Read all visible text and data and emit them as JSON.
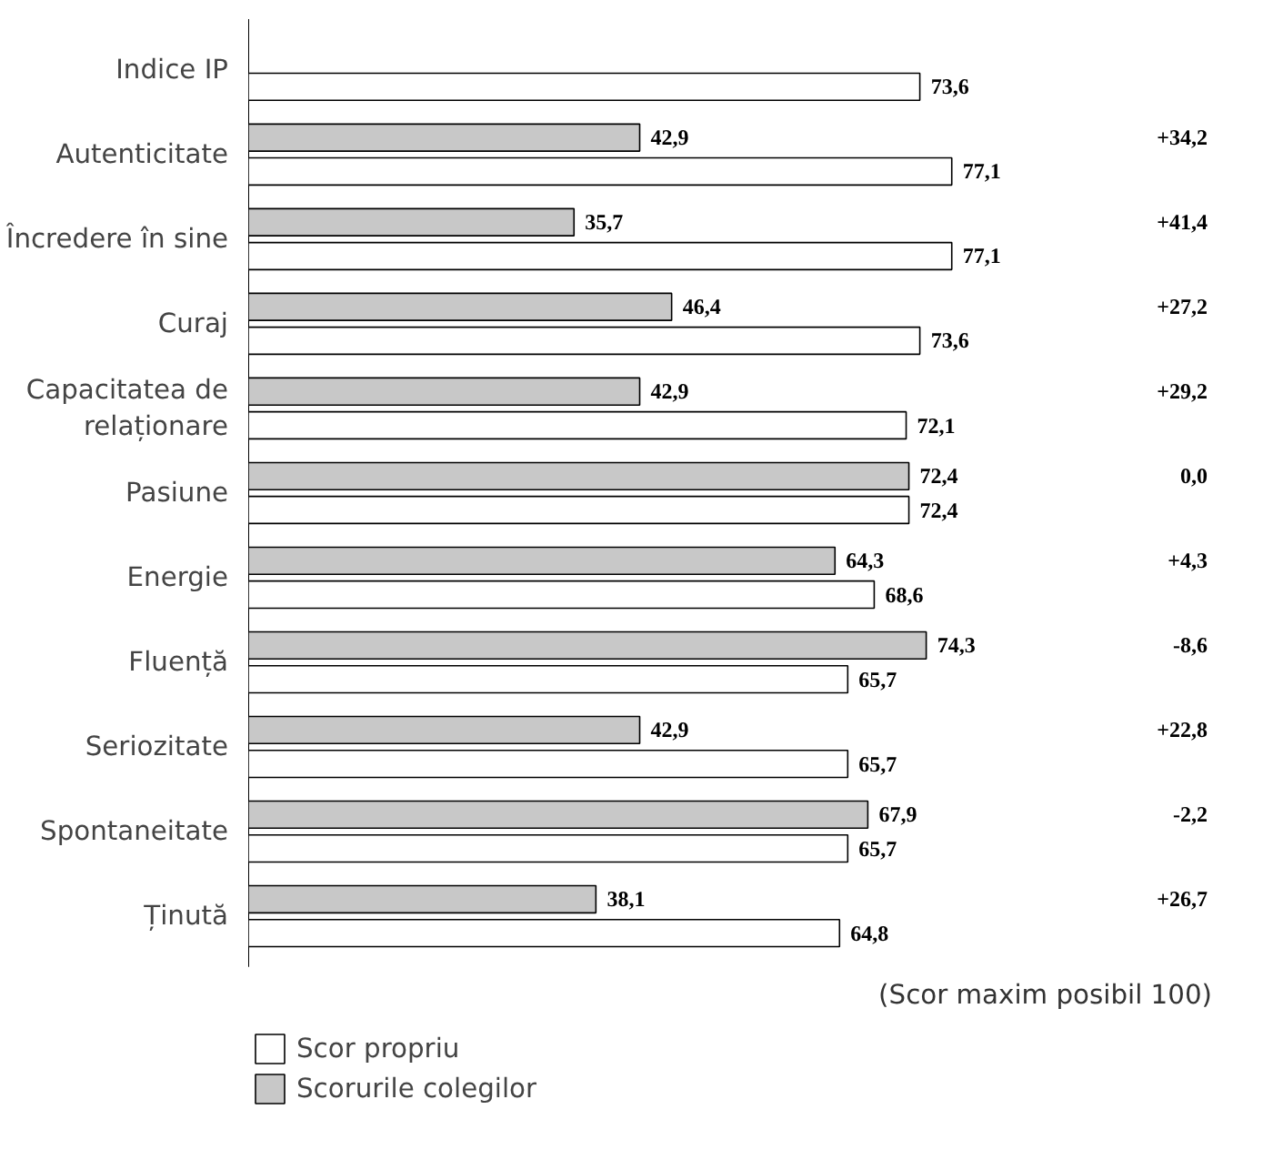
{
  "chart_data": {
    "type": "bar",
    "orientation": "horizontal",
    "categories": [
      "Indice IP",
      "Autenticitate",
      "Încredere în sine",
      "Curaj",
      "Capacitatea de relaționare",
      "Pasiune",
      "Energie",
      "Fluență",
      "Seriozitate",
      "Spontaneitate",
      "Ținută"
    ],
    "series": [
      {
        "name": "Scorurile colegilor",
        "color": "#c8c8c8",
        "values": [
          null,
          42.9,
          35.7,
          46.4,
          42.9,
          72.4,
          64.3,
          74.3,
          42.9,
          67.9,
          38.1
        ],
        "value_labels": [
          null,
          "42,9",
          "35,7",
          "46,4",
          "42,9",
          "72,4",
          "64,3",
          "74,3",
          "42,9",
          "67,9",
          "38,1"
        ]
      },
      {
        "name": "Scor propriu",
        "color": "#ffffff",
        "values": [
          73.6,
          77.1,
          77.1,
          73.6,
          72.1,
          72.4,
          68.6,
          65.7,
          65.7,
          65.7,
          64.8
        ],
        "value_labels": [
          "73,6",
          "77,1",
          "77,1",
          "73,6",
          "72,1",
          "72,4",
          "68,6",
          "65,7",
          "65,7",
          "65,7",
          "64,8"
        ]
      }
    ],
    "tick_labels": "y",
    "legend": "bottom left",
    "annotations": [
      "+34,2",
      "+41,4",
      "+27,2",
      "+29,2",
      "0,0",
      "+4,3",
      "-8,6",
      "+22,8",
      "-2,2",
      "+26,7",
      "(Scor maxim posibil 100)"
    ]
  }
}
